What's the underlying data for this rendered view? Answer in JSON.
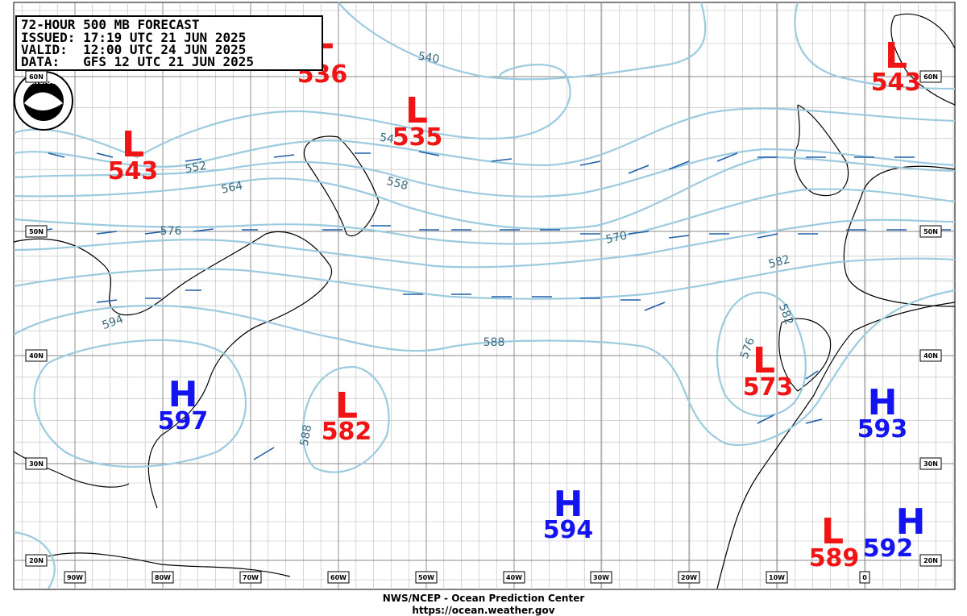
{
  "header": {
    "lines": [
      "72-HOUR 500 MB FORECAST",
      "ISSUED: 17:19 UTC 21 JUN 2025",
      "VALID:  12:00 UTC 24 JUN 2025",
      "DATA:   GFS 12 UTC 21 JUN 2025"
    ]
  },
  "logo": "NOAA",
  "centers": [
    {
      "type": "L",
      "value": "536"
    },
    {
      "type": "L",
      "value": "535"
    },
    {
      "type": "L",
      "value": "543"
    },
    {
      "type": "L",
      "value": "543"
    },
    {
      "type": "H",
      "value": "597"
    },
    {
      "type": "L",
      "value": "582"
    },
    {
      "type": "H",
      "value": "594"
    },
    {
      "type": "L",
      "value": "573"
    },
    {
      "type": "H",
      "value": "593"
    },
    {
      "type": "L",
      "value": "589"
    },
    {
      "type": "H",
      "value": "592"
    }
  ],
  "contour_labels": [
    "540",
    "552",
    "564",
    "558",
    "576",
    "570",
    "582",
    "594",
    "588",
    "576",
    "582",
    "588",
    "54"
  ],
  "lat_labels": [
    "60N",
    "50N",
    "40N",
    "30N",
    "20N"
  ],
  "lon_labels": [
    "90W",
    "80W",
    "70W",
    "60W",
    "50W",
    "40W",
    "30W",
    "20W",
    "10W",
    "0"
  ],
  "footer": {
    "agency": "NWS/NCEP - Ocean Prediction Center",
    "url": "https://ocean.weather.gov"
  }
}
